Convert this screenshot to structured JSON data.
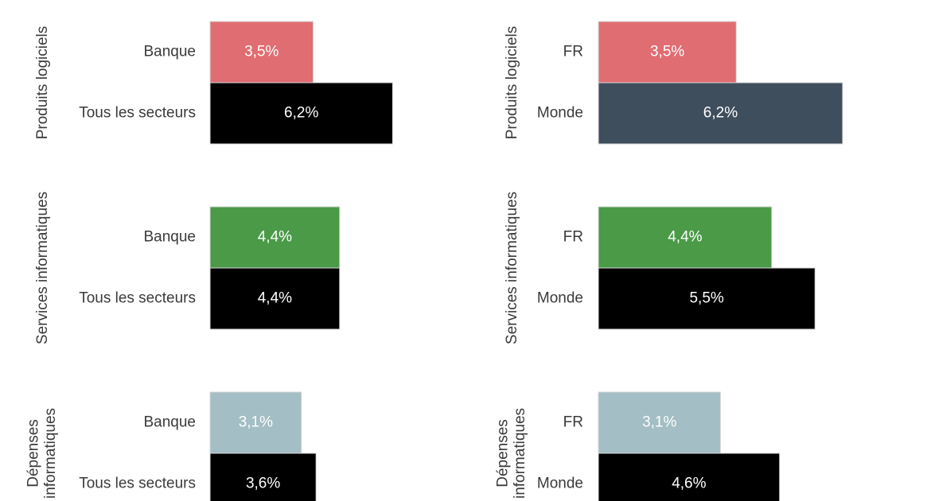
{
  "chart_data": [
    {
      "type": "bar",
      "orientation": "horizontal",
      "title": "",
      "xlabel": "",
      "ylabel": "",
      "groups": [
        {
          "name": "Produits logiciels",
          "bars": [
            {
              "category": "Banque",
              "value": 3.5,
              "label": "3,5%",
              "color": "#e06d72"
            },
            {
              "category": "Tous les secteurs",
              "value": 6.2,
              "label": "6,2%",
              "color": "#000000"
            }
          ]
        },
        {
          "name": "Services informatiques",
          "bars": [
            {
              "category": "Banque",
              "value": 4.4,
              "label": "4,4%",
              "color": "#4a9a47"
            },
            {
              "category": "Tous les secteurs",
              "value": 4.4,
              "label": "4,4%",
              "color": "#000000"
            }
          ]
        },
        {
          "name": "Dépenses informatiques",
          "name_lines": [
            "Dépenses",
            "informatiques"
          ],
          "bars": [
            {
              "category": "Banque",
              "value": 3.1,
              "label": "3,1%",
              "color": "#a3bec4"
            },
            {
              "category": "Tous les secteurs",
              "value": 3.6,
              "label": "3,6%",
              "color": "#000000"
            }
          ]
        }
      ]
    },
    {
      "type": "bar",
      "orientation": "horizontal",
      "title": "",
      "xlabel": "",
      "ylabel": "",
      "groups": [
        {
          "name": "Produits logiciels",
          "bars": [
            {
              "category": "FR",
              "value": 3.5,
              "label": "3,5%",
              "color": "#e06d72"
            },
            {
              "category": "Monde",
              "value": 6.2,
              "label": "6,2%",
              "color": "#3f4e5d"
            }
          ]
        },
        {
          "name": "Services informatiques",
          "bars": [
            {
              "category": "FR",
              "value": 4.4,
              "label": "4,4%",
              "color": "#4a9a47"
            },
            {
              "category": "Monde",
              "value": 5.5,
              "label": "5,5%",
              "color": "#000000"
            }
          ]
        },
        {
          "name": "Dépenses informatiques",
          "name_lines": [
            "Dépenses",
            "informatiques"
          ],
          "bars": [
            {
              "category": "FR",
              "value": 3.1,
              "label": "3,1%",
              "color": "#a3bec4"
            },
            {
              "category": "Monde",
              "value": 4.6,
              "label": "4,6%",
              "color": "#000000"
            }
          ]
        }
      ]
    }
  ]
}
